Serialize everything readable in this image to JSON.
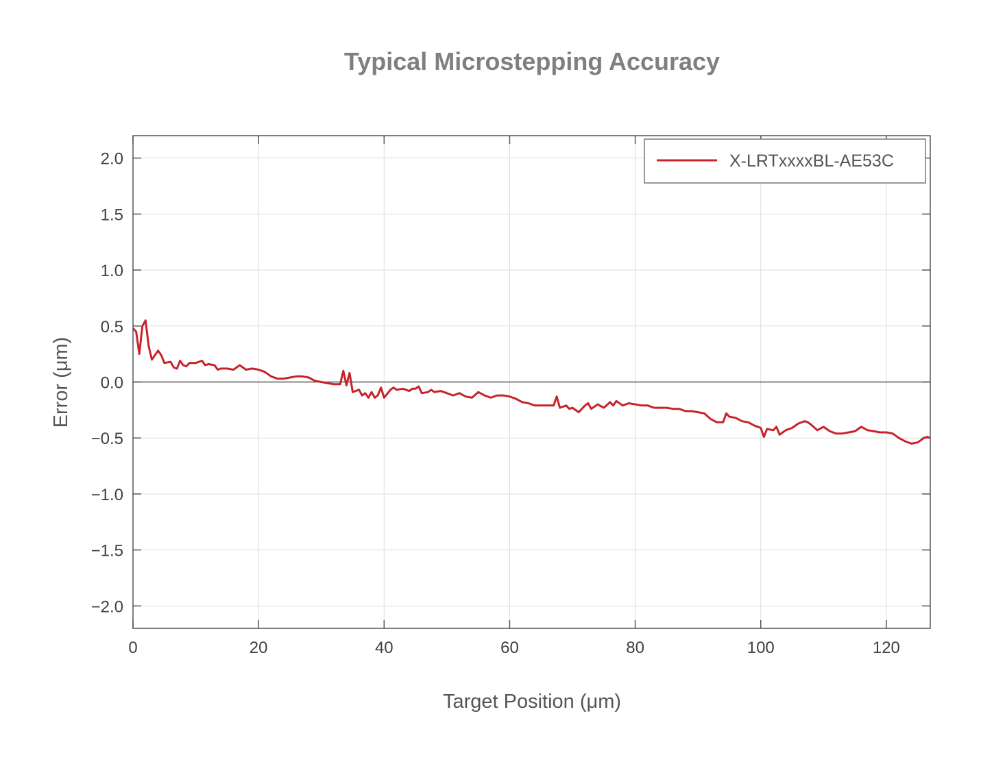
{
  "chart_data": {
    "type": "line",
    "title": "Typical Microstepping Accuracy",
    "xlabel": "Target Position (μm)",
    "ylabel": "Error (μm)",
    "xlim": [
      0,
      127
    ],
    "ylim": [
      -2.2,
      2.2
    ],
    "xticks": [
      0,
      20,
      40,
      60,
      80,
      100,
      120
    ],
    "xtick_labels": [
      "0",
      "20",
      "40",
      "60",
      "80",
      "100",
      "120"
    ],
    "yticks": [
      2.0,
      1.5,
      1.0,
      0.5,
      0.0,
      -0.5,
      -1.0,
      -1.5,
      -2.0
    ],
    "ytick_labels": [
      "2.0",
      "1.5",
      "1.0",
      "0.5",
      "0.0",
      "−0.5",
      "−1.0",
      "−1.5",
      "−2.0"
    ],
    "grid": true,
    "zero_line": true,
    "legend_position": "top-right",
    "series": [
      {
        "name": "X-LRTxxxxBL-AE53C",
        "color": "#c8232a",
        "x": [
          0,
          0.5,
          1,
          1.5,
          2,
          2.5,
          3,
          4,
          4.5,
          5,
          6,
          6.5,
          7,
          7.5,
          8,
          8.5,
          9,
          10,
          11,
          11.5,
          12,
          13,
          13.5,
          14,
          15,
          16,
          17,
          18,
          19,
          20,
          21,
          22,
          23,
          24,
          25,
          26,
          27,
          28,
          29,
          30,
          31,
          32,
          33,
          33.5,
          34,
          34.5,
          35,
          36,
          36.5,
          37,
          37.5,
          38,
          38.5,
          39,
          39.5,
          40,
          41,
          41.5,
          42,
          43,
          44,
          44.5,
          45,
          45.5,
          46,
          47,
          47.5,
          48,
          49,
          50,
          51,
          52,
          53,
          54,
          55,
          56,
          57,
          58,
          59,
          60,
          61,
          62,
          63,
          64,
          65,
          66,
          67,
          67.5,
          68,
          69,
          69.5,
          70,
          71,
          72,
          72.5,
          73,
          74,
          75,
          76,
          76.5,
          77,
          78,
          79,
          80,
          81,
          82,
          83,
          84,
          85,
          86,
          87,
          88,
          89,
          90,
          91,
          92,
          93,
          94,
          94.5,
          95,
          96,
          97,
          98,
          99,
          100,
          100.5,
          101,
          102,
          102.5,
          103,
          104,
          105,
          106,
          107,
          107.5,
          108,
          109,
          110,
          111,
          112,
          113,
          114,
          115,
          116,
          117,
          118,
          119,
          120,
          121,
          122,
          123,
          124,
          125,
          126,
          126.5,
          127
        ],
        "y": [
          0.48,
          0.45,
          0.25,
          0.5,
          0.55,
          0.32,
          0.2,
          0.28,
          0.24,
          0.17,
          0.18,
          0.13,
          0.12,
          0.19,
          0.15,
          0.14,
          0.17,
          0.17,
          0.19,
          0.15,
          0.16,
          0.15,
          0.11,
          0.12,
          0.12,
          0.11,
          0.15,
          0.11,
          0.12,
          0.11,
          0.09,
          0.05,
          0.03,
          0.03,
          0.04,
          0.05,
          0.05,
          0.04,
          0.01,
          0.0,
          -0.01,
          -0.02,
          -0.02,
          0.1,
          -0.03,
          0.08,
          -0.09,
          -0.07,
          -0.12,
          -0.1,
          -0.14,
          -0.09,
          -0.14,
          -0.12,
          -0.05,
          -0.14,
          -0.07,
          -0.05,
          -0.07,
          -0.06,
          -0.08,
          -0.06,
          -0.06,
          -0.04,
          -0.1,
          -0.09,
          -0.07,
          -0.09,
          -0.08,
          -0.1,
          -0.12,
          -0.1,
          -0.13,
          -0.14,
          -0.09,
          -0.12,
          -0.14,
          -0.12,
          -0.12,
          -0.13,
          -0.15,
          -0.18,
          -0.19,
          -0.21,
          -0.21,
          -0.21,
          -0.21,
          -0.13,
          -0.23,
          -0.21,
          -0.24,
          -0.23,
          -0.27,
          -0.21,
          -0.19,
          -0.24,
          -0.2,
          -0.23,
          -0.18,
          -0.21,
          -0.17,
          -0.21,
          -0.19,
          -0.2,
          -0.21,
          -0.21,
          -0.23,
          -0.23,
          -0.23,
          -0.24,
          -0.24,
          -0.26,
          -0.26,
          -0.27,
          -0.28,
          -0.33,
          -0.36,
          -0.36,
          -0.28,
          -0.31,
          -0.32,
          -0.35,
          -0.36,
          -0.39,
          -0.41,
          -0.49,
          -0.42,
          -0.43,
          -0.4,
          -0.47,
          -0.43,
          -0.41,
          -0.37,
          -0.35,
          -0.36,
          -0.38,
          -0.43,
          -0.4,
          -0.44,
          -0.46,
          -0.46,
          -0.45,
          -0.44,
          -0.4,
          -0.43,
          -0.44,
          -0.45,
          -0.45,
          -0.46,
          -0.5,
          -0.53,
          -0.55,
          -0.54,
          -0.5,
          -0.49,
          -0.5
        ]
      }
    ]
  }
}
